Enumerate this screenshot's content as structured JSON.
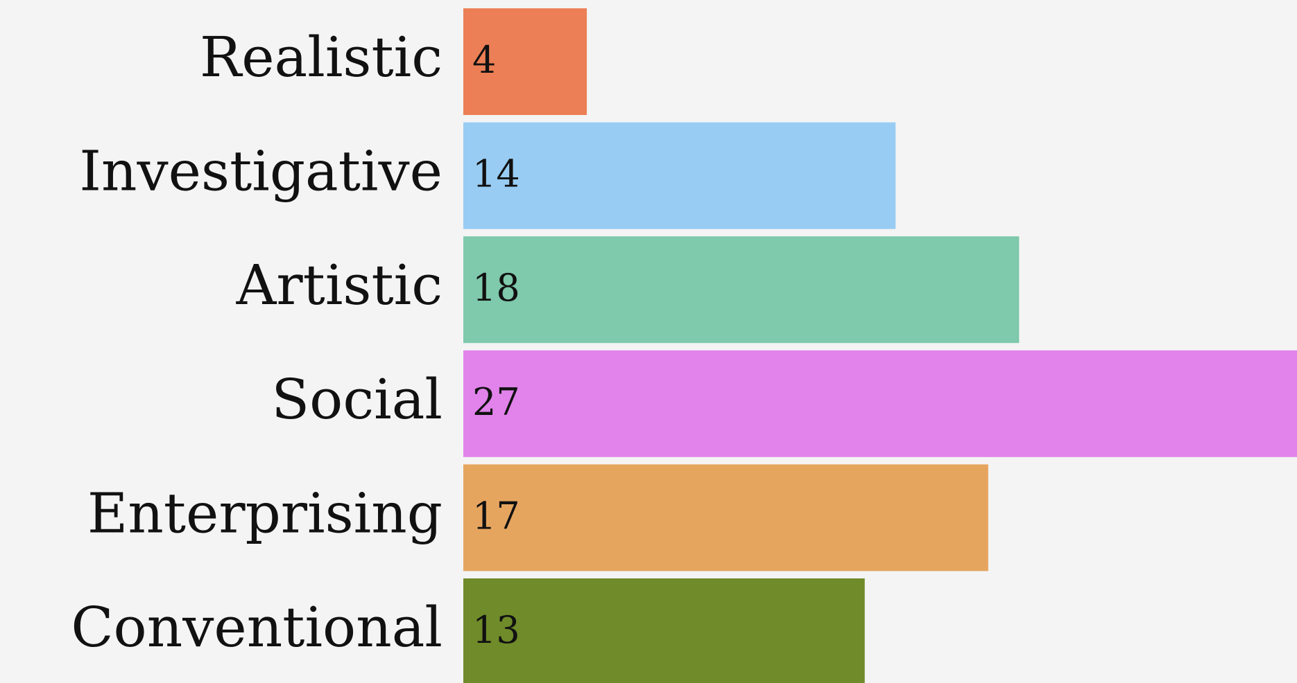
{
  "chart_data": {
    "type": "bar",
    "orientation": "horizontal",
    "categories": [
      "Realistic",
      "Investigative",
      "Artistic",
      "Social",
      "Enterprising",
      "Conventional"
    ],
    "values": [
      4,
      14,
      18,
      27,
      17,
      13
    ],
    "colors": [
      "#ec7f55",
      "#98ccf3",
      "#7fc9ac",
      "#e183ea",
      "#e6a55f",
      "#6f8b2a"
    ]
  }
}
